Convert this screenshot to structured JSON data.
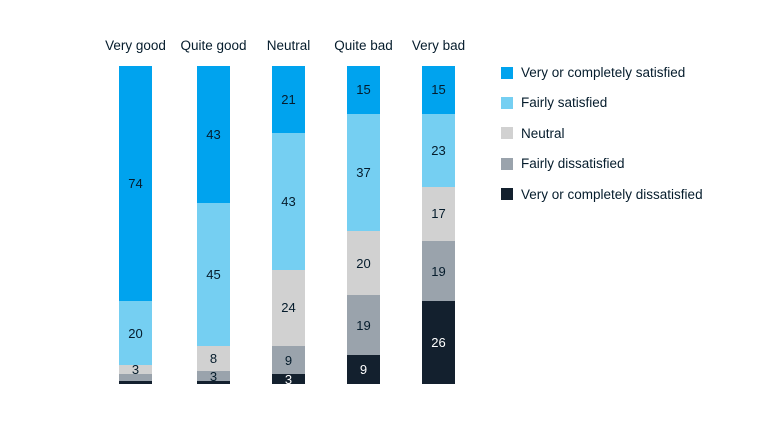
{
  "chart_data": {
    "type": "bar",
    "variant": "stacked-vertical-100pct",
    "title": "",
    "xlabel": "",
    "ylabel": "",
    "ylim": [
      0,
      100
    ],
    "grid": false,
    "axes_visible": false,
    "legend_position": "right",
    "value_label_min": 3,
    "categories": [
      "Very good",
      "Quite good",
      "Neutral",
      "Quite bad",
      "Very bad"
    ],
    "series": [
      {
        "name": "Very or completely satisfied",
        "color": "#00a3ee",
        "label_color": "#051c2c",
        "values": [
          74,
          43,
          21,
          15,
          15
        ]
      },
      {
        "name": "Fairly satisfied",
        "color": "#75cff2",
        "label_color": "#051c2c",
        "values": [
          20,
          45,
          43,
          37,
          23
        ]
      },
      {
        "name": "Neutral",
        "color": "#d1d1d1",
        "label_color": "#051c2c",
        "values": [
          3,
          8,
          24,
          20,
          17
        ]
      },
      {
        "name": "Fairly dissatisfied",
        "color": "#9aa3ac",
        "label_color": "#051c2c",
        "values": [
          2,
          3,
          9,
          19,
          19
        ]
      },
      {
        "name": "Very or completely dissatisfied",
        "color": "#13202e",
        "label_color": "#ffffff",
        "values": [
          1,
          1,
          3,
          9,
          26
        ]
      }
    ]
  },
  "colors": {
    "background": "#ffffff",
    "text": "#051c2c"
  }
}
